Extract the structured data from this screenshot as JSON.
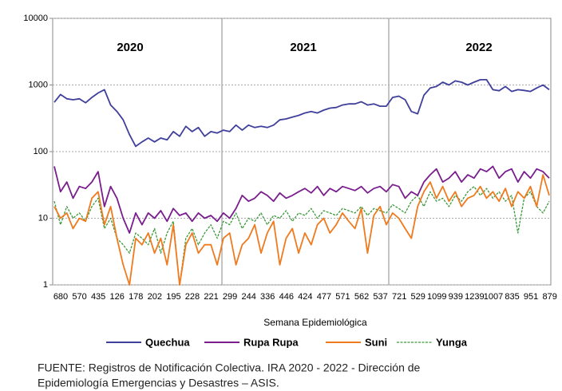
{
  "chart_data": {
    "type": "line",
    "annotations": [
      "2020",
      "2021",
      "2022"
    ],
    "xlabel": "Semana Epidemiológica",
    "x_tick_labels": [
      "680",
      "570",
      "435",
      "126",
      "178",
      "202",
      "195",
      "228",
      "221",
      "299",
      "244",
      "336",
      "446",
      "424",
      "477",
      "571",
      "562",
      "537",
      "721",
      "529",
      "1099",
      "939",
      "1239",
      "1007",
      "835",
      "951",
      "879"
    ],
    "ylim": [
      1,
      10000
    ],
    "yticks": [
      1,
      10,
      100,
      1000,
      10000
    ],
    "log_scale": true,
    "grid": true,
    "legend": "bottom",
    "series": [
      {
        "name": "Quechua",
        "color": "#3f3f9c",
        "dash": "solid",
        "values": [
          550,
          720,
          620,
          600,
          620,
          540,
          650,
          760,
          850,
          500,
          400,
          300,
          180,
          120,
          140,
          160,
          140,
          160,
          150,
          200,
          170,
          240,
          200,
          230,
          170,
          200,
          190,
          210,
          200,
          250,
          210,
          250,
          230,
          240,
          230,
          250,
          300,
          310,
          330,
          350,
          380,
          400,
          380,
          420,
          450,
          460,
          500,
          520,
          520,
          560,
          500,
          520,
          480,
          480,
          650,
          680,
          600,
          400,
          370,
          700,
          900,
          950,
          1100,
          1000,
          1150,
          1100,
          1000,
          1100,
          1200,
          1200,
          850,
          820,
          950,
          800,
          850,
          830,
          800,
          900,
          1000,
          850
        ]
      },
      {
        "name": "Rupa Rupa",
        "color": "#7a1e8e",
        "dash": "solid",
        "values": [
          60,
          25,
          35,
          20,
          30,
          28,
          35,
          50,
          15,
          30,
          20,
          10,
          6,
          12,
          8,
          12,
          10,
          13,
          9,
          14,
          11,
          12,
          9,
          12,
          10,
          11,
          9,
          12,
          10,
          14,
          22,
          18,
          20,
          25,
          22,
          18,
          24,
          20,
          22,
          25,
          28,
          24,
          30,
          22,
          28,
          25,
          30,
          28,
          26,
          30,
          24,
          28,
          30,
          25,
          32,
          30,
          20,
          25,
          22,
          35,
          45,
          55,
          35,
          40,
          50,
          35,
          45,
          40,
          55,
          50,
          60,
          40,
          50,
          55,
          35,
          50,
          40,
          55,
          50,
          40
        ]
      },
      {
        "name": "Suni",
        "color": "#f07a1e",
        "dash": "solid",
        "values": [
          15,
          10,
          12,
          7,
          10,
          9,
          20,
          25,
          8,
          15,
          5,
          2,
          1,
          5,
          4,
          6,
          3,
          5,
          2,
          8,
          1,
          4,
          6,
          3,
          4,
          4,
          2,
          5,
          6,
          2,
          4,
          5,
          8,
          3,
          6,
          9,
          2,
          5,
          7,
          3,
          6,
          4,
          8,
          10,
          6,
          8,
          12,
          9,
          7,
          14,
          3,
          11,
          15,
          8,
          12,
          10,
          7,
          5,
          15,
          25,
          35,
          20,
          30,
          18,
          25,
          15,
          20,
          22,
          30,
          20,
          25,
          18,
          28,
          15,
          25,
          20,
          30,
          15,
          45,
          22
        ]
      },
      {
        "name": "Yunga",
        "color": "#3a9a3a",
        "dash": "dashed",
        "values": [
          18,
          8,
          15,
          10,
          12,
          9,
          15,
          20,
          7,
          10,
          5,
          4,
          3,
          6,
          5,
          4,
          7,
          3,
          6,
          9,
          1,
          5,
          7,
          4,
          6,
          8,
          5,
          9,
          8,
          12,
          7,
          10,
          9,
          12,
          8,
          11,
          10,
          13,
          9,
          12,
          11,
          14,
          10,
          13,
          12,
          11,
          14,
          13,
          12,
          15,
          11,
          14,
          13,
          12,
          16,
          14,
          12,
          18,
          22,
          15,
          25,
          18,
          20,
          15,
          22,
          18,
          25,
          30,
          22,
          28,
          20,
          25,
          18,
          22,
          6,
          20,
          25,
          15,
          12,
          18
        ]
      }
    ],
    "source": [
      "FUENTE:  Registros de Notificación Colectiva. IRA 2020 - 2022 - Dirección de",
      "Epidemiología  Emergencias y Desastres  – ASIS."
    ]
  }
}
